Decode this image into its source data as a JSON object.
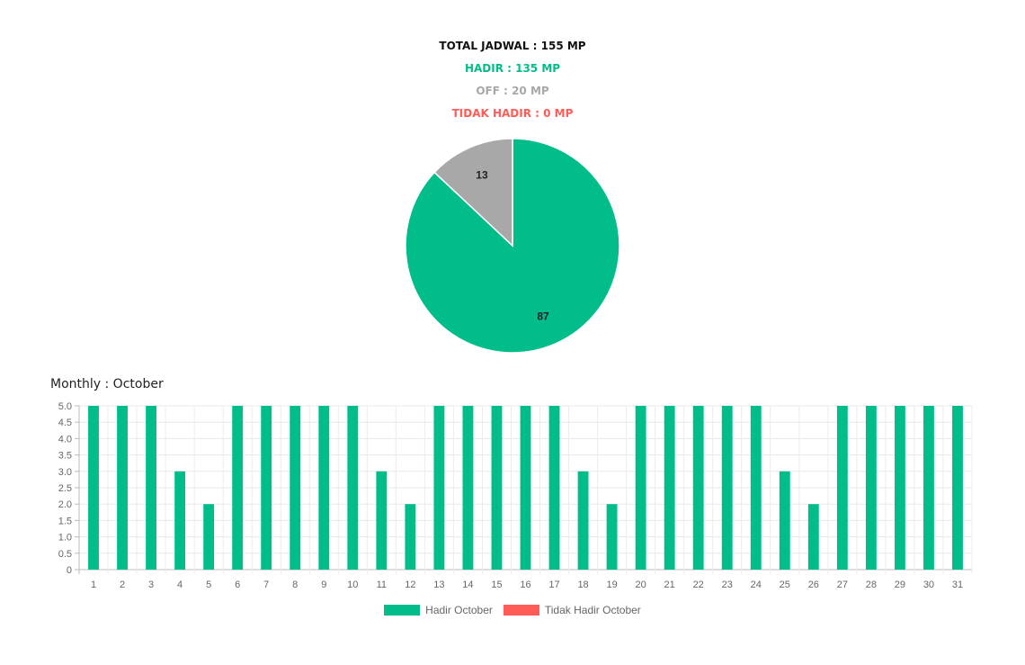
{
  "summary": {
    "total": "TOTAL JADWAL : 155 MP",
    "hadir": "HADIR : 135 MP",
    "off": "OFF : 20 MP",
    "tidak_hadir": "TIDAK HADIR : 0 MP"
  },
  "colors": {
    "hadir": "#00bd8a",
    "off": "#a8a8a8",
    "tidak_hadir": "#ff5b57"
  },
  "monthly_title": "Monthly : October",
  "chart_data": [
    {
      "type": "pie",
      "slices": [
        {
          "label": "Hadir",
          "value": 87,
          "color": "#00bd8a"
        },
        {
          "label": "Off",
          "value": 13,
          "color": "#a8a8a8"
        }
      ]
    },
    {
      "type": "bar",
      "categories": [
        "1",
        "2",
        "3",
        "4",
        "5",
        "6",
        "7",
        "8",
        "9",
        "10",
        "11",
        "12",
        "13",
        "14",
        "15",
        "16",
        "17",
        "18",
        "19",
        "20",
        "21",
        "22",
        "23",
        "24",
        "25",
        "26",
        "27",
        "28",
        "29",
        "30",
        "31"
      ],
      "series": [
        {
          "name": "Hadir October",
          "color": "#00bd8a",
          "values": [
            5,
            5,
            5,
            3,
            2,
            5,
            5,
            5,
            5,
            5,
            3,
            2,
            5,
            5,
            5,
            5,
            5,
            3,
            2,
            5,
            5,
            5,
            5,
            5,
            3,
            2,
            5,
            5,
            5,
            5,
            5
          ]
        },
        {
          "name": "Tidak Hadir October",
          "color": "#ff5b57",
          "values": [
            0,
            0,
            0,
            0,
            0,
            0,
            0,
            0,
            0,
            0,
            0,
            0,
            0,
            0,
            0,
            0,
            0,
            0,
            0,
            0,
            0,
            0,
            0,
            0,
            0,
            0,
            0,
            0,
            0,
            0,
            0
          ]
        }
      ],
      "ylim": [
        0,
        5
      ],
      "yticks": [
        "0",
        "0.5",
        "1.0",
        "1.5",
        "2.0",
        "2.5",
        "3.0",
        "3.5",
        "4.0",
        "4.5",
        "5.0"
      ],
      "grid": true,
      "legend": "bottom"
    }
  ]
}
